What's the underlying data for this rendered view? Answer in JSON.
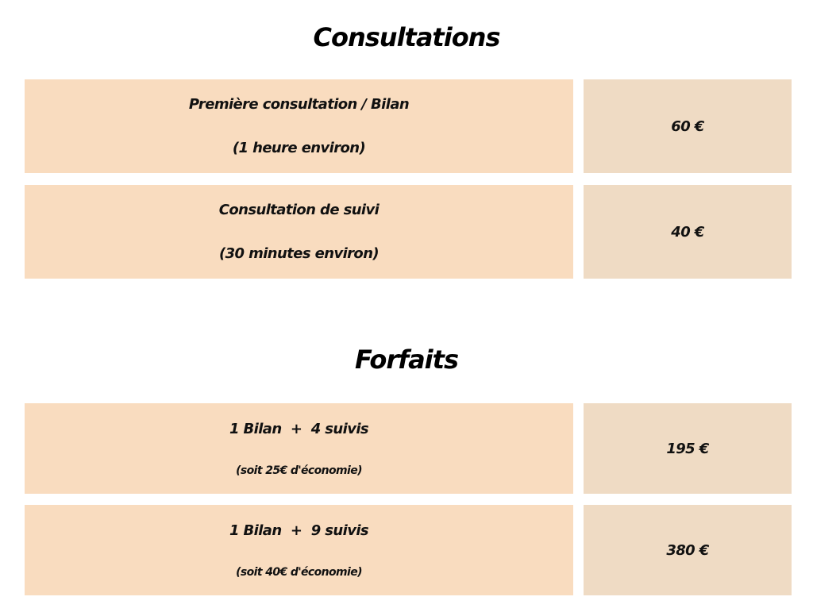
{
  "consultations": {
    "title": "Consultations",
    "rows": [
      {
        "name": "Première consultation / Bilan",
        "detail": "(1 heure environ)",
        "price": "60 €"
      },
      {
        "name": "Consultation de suivi",
        "detail": "(30 minutes environ)",
        "price": "40 €"
      }
    ]
  },
  "forfaits": {
    "title": "Forfaits",
    "rows": [
      {
        "name": "1 Bilan  +  4 suivis",
        "detail": "(soit 25€ d'économie)",
        "price": "195 €"
      },
      {
        "name": "1 Bilan  +  9 suivis",
        "detail": "(soit 40€ d'économie)",
        "price": "380 €"
      }
    ]
  },
  "colors": {
    "label_bg": "#f9dcbf",
    "price_bg": "#efdbc4"
  }
}
